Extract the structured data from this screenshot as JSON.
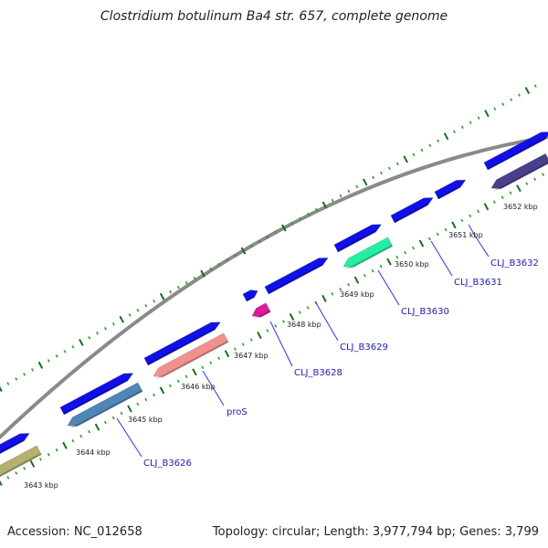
{
  "title": "Clostridium botulinum Ba4 str. 657, complete genome",
  "footer": {
    "accession": "Accession: NC_012658",
    "summary": "Topology: circular; Length: 3,977,794 bp; Genes: 3,799"
  },
  "colors": {
    "backbone": "#8a8a8a",
    "forward_cds": "#1010e8",
    "tick_dark": "#1a6e1a",
    "tick_light": "#28a028",
    "label_line": "#3030e0",
    "label_text": "#2020b0"
  },
  "kbp_labels": [
    "3643 kbp",
    "3644 kbp",
    "3645 kbp",
    "3646 kbp",
    "3647 kbp",
    "3648 kbp",
    "3649 kbp",
    "3650 kbp",
    "3651 kbp",
    "3652 kbp"
  ],
  "forward_genes": [
    {
      "name": "fwd-gene-1"
    },
    {
      "name": "fwd-gene-2"
    },
    {
      "name": "fwd-gene-3"
    },
    {
      "name": "fwd-gene-4"
    },
    {
      "name": "fwd-gene-5"
    },
    {
      "name": "fwd-gene-6"
    },
    {
      "name": "fwd-gene-7"
    },
    {
      "name": "fwd-gene-8"
    },
    {
      "name": "fwd-gene-9"
    },
    {
      "name": "fwd-gene-10"
    }
  ],
  "reverse_genes": [
    {
      "name": "rev-gene-olive",
      "color": "#b4b070"
    },
    {
      "name": "rev-gene-steelblue",
      "color": "#4f86b8"
    },
    {
      "name": "rev-gene-salmon",
      "color": "#f29090"
    },
    {
      "name": "rev-gene-magenta",
      "color": "#e0189a"
    },
    {
      "name": "rev-gene-mint",
      "color": "#22f0a0"
    },
    {
      "name": "rev-gene-darkslate",
      "color": "#48408a"
    }
  ],
  "gene_labels": [
    "CLJ_B3626",
    "proS",
    "CLJ_B3628",
    "CLJ_B3629",
    "CLJ_B3630",
    "CLJ_B3631",
    "CLJ_B3632"
  ]
}
